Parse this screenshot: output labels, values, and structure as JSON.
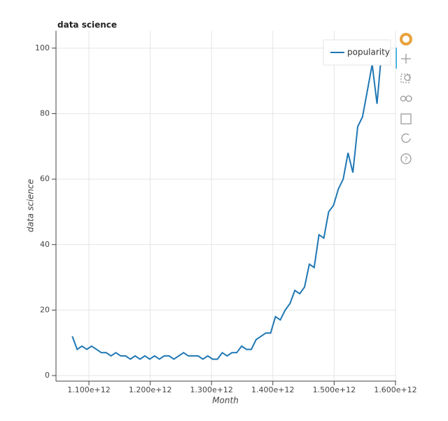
{
  "chart_data": {
    "type": "line",
    "title": "data science",
    "x_label": "Month",
    "y_label": "data science",
    "x": [
      1072900000000,
      1080790000000,
      1088680000000,
      1096570000000,
      1104460000000,
      1112350000000,
      1120240000000,
      1128130000000,
      1136020000000,
      1143910000000,
      1151800000000,
      1159690000000,
      1167580000000,
      1175470000000,
      1183360000000,
      1191250000000,
      1199140000000,
      1207030000000,
      1214920000000,
      1222810000000,
      1230700000000,
      1238590000000,
      1246480000000,
      1254370000000,
      1262260000000,
      1270150000000,
      1278040000000,
      1285930000000,
      1293820000000,
      1301710000000,
      1309600000000,
      1317490000000,
      1325380000000,
      1333270000000,
      1341160000000,
      1349050000000,
      1356940000000,
      1364830000000,
      1372720000000,
      1380610000000,
      1388500000000,
      1396390000000,
      1404280000000,
      1412170000000,
      1420060000000,
      1427950000000,
      1435840000000,
      1443730000000,
      1451620000000,
      1459510000000,
      1467400000000,
      1475290000000,
      1483180000000,
      1491070000000,
      1498960000000,
      1506850000000,
      1514740000000,
      1522630000000,
      1530520000000,
      1538410000000,
      1546300000000,
      1554190000000,
      1562080000000,
      1569970000000,
      1577860000000
    ],
    "series": [
      {
        "name": "popularity",
        "color": "#1f77b4",
        "values": [
          12,
          8,
          9,
          8,
          9,
          8,
          7,
          7,
          6,
          7,
          6,
          6,
          5,
          6,
          5,
          6,
          5,
          6,
          5,
          6,
          6,
          5,
          6,
          7,
          6,
          6,
          6,
          5,
          6,
          5,
          5,
          7,
          6,
          7,
          7,
          9,
          8,
          8,
          11,
          12,
          13,
          13,
          18,
          17,
          20,
          22,
          26,
          25,
          27,
          34,
          33,
          43,
          42,
          50,
          52,
          57,
          60,
          68,
          62,
          76,
          79,
          87,
          95,
          83,
          100
        ]
      }
    ],
    "xlim": [
      1046300000000,
      1601200000000
    ],
    "xticks": [
      {
        "value": 1100000000000,
        "label": "1.100e+12"
      },
      {
        "value": 1200000000000,
        "label": "1.200e+12"
      },
      {
        "value": 1300000000000,
        "label": "1.300e+12"
      },
      {
        "value": 1400000000000,
        "label": "1.400e+12"
      },
      {
        "value": 1500000000000,
        "label": "1.500e+12"
      },
      {
        "value": 1600000000000,
        "label": "1.600e+12"
      }
    ],
    "ylim": [
      -1.7,
      105.3
    ],
    "yticks": [
      0,
      20,
      40,
      60,
      80,
      100
    ],
    "grid": true,
    "legend": "top-right"
  }
}
